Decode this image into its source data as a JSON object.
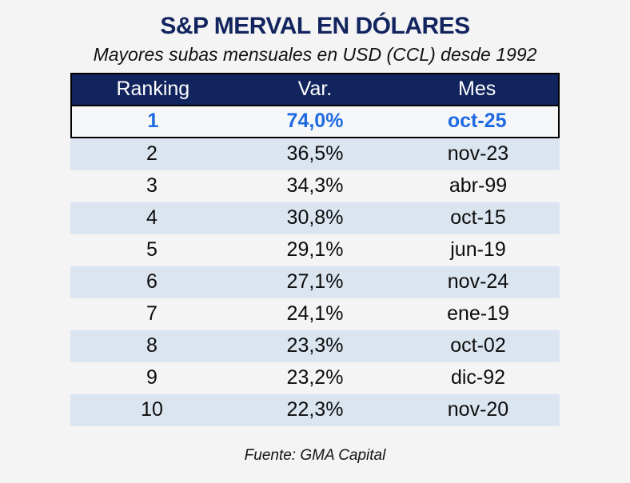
{
  "title": "S&P MERVAL EN DÓLARES",
  "subtitle": "Mayores subas mensuales en USD (CCL) desde 1992",
  "footer": "Fuente: GMA Capital",
  "colors": {
    "navy": "#12245e",
    "accent_blue": "#1e6ae2",
    "row_alt_blue": "#dbe5f0",
    "background": "#f4f4f5",
    "border_black": "#000000",
    "header_text": "#ffffff"
  },
  "chart_data": {
    "type": "table",
    "title": "S&P MERVAL EN DÓLARES",
    "subtitle": "Mayores subas mensuales en USD (CCL) desde 1992",
    "source": "Fuente: GMA Capital",
    "columns": [
      "Ranking",
      "Var.",
      "Mes"
    ],
    "rows": [
      [
        "1",
        "74,0%",
        "oct-25"
      ],
      [
        "2",
        "36,5%",
        "nov-23"
      ],
      [
        "3",
        "34,3%",
        "abr-99"
      ],
      [
        "4",
        "30,8%",
        "oct-15"
      ],
      [
        "5",
        "29,1%",
        "jun-19"
      ],
      [
        "6",
        "27,1%",
        "nov-24"
      ],
      [
        "7",
        "24,1%",
        "ene-19"
      ],
      [
        "8",
        "23,3%",
        "oct-02"
      ],
      [
        "9",
        "23,2%",
        "dic-92"
      ],
      [
        "10",
        "22,3%",
        "nov-20"
      ]
    ],
    "highlighted_row_index": 0,
    "layout": {
      "legend": "none",
      "grid": "off",
      "row_striping": "alternating light blue",
      "highlight_style": "bold blue text with black outline box"
    }
  }
}
